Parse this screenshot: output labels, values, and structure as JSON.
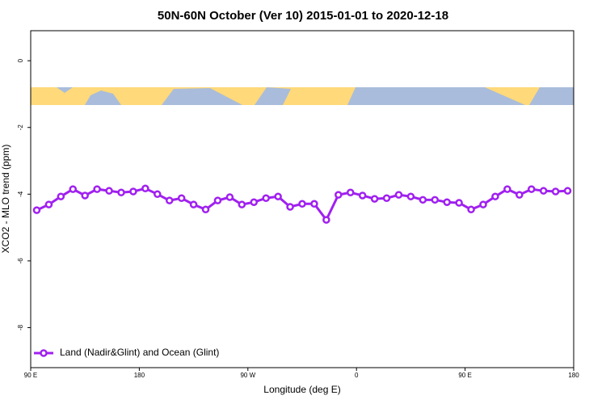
{
  "chart_data": {
    "type": "line",
    "title": "50N-60N October (Ver 10)   2015-01-01 to 2020-12-18",
    "xlabel": "Longitude (deg E)",
    "ylabel": "XCO2 - MLO trend (ppm)",
    "x": [
      95,
      105,
      115,
      125,
      135,
      145,
      155,
      165,
      175,
      185,
      195,
      205,
      215,
      225,
      235,
      245,
      255,
      265,
      275,
      285,
      295,
      305,
      315,
      325,
      335,
      345,
      355,
      365,
      375,
      385,
      395,
      405,
      415,
      425,
      435,
      445,
      455,
      465,
      475,
      485,
      495,
      505,
      515,
      525,
      535
    ],
    "series": [
      {
        "name": "Land (Nadir&Glint) and Ocean (Glint)",
        "color": "#a020f0",
        "values": [
          -4.48,
          -4.31,
          -4.07,
          -3.85,
          -4.04,
          -3.85,
          -3.9,
          -3.95,
          -3.92,
          -3.83,
          -4.0,
          -4.19,
          -4.12,
          -4.31,
          -4.46,
          -4.19,
          -4.09,
          -4.31,
          -4.24,
          -4.12,
          -4.07,
          -4.38,
          -4.29,
          -4.29,
          -4.77,
          -4.02,
          -3.95,
          -4.04,
          -4.14,
          -4.12,
          -4.02,
          -4.07,
          -4.17,
          -4.17,
          -4.24,
          -4.26,
          -4.46,
          -4.31,
          -4.07,
          -3.85,
          -4.02,
          -3.85,
          -3.9,
          -3.92,
          -3.9
        ]
      }
    ],
    "xlim": [
      90,
      540
    ],
    "xticks": [
      {
        "value": 90,
        "label": "90 E"
      },
      180,
      {
        "value": 270,
        "label": "90 W"
      },
      {
        "value": 360,
        "label": "0"
      },
      {
        "value": 450,
        "label": "90 E"
      },
      {
        "value": 540,
        "label": "180"
      }
    ],
    "ylim": [
      -9.2,
      0.9
    ],
    "yticks": [
      0,
      -2,
      -4,
      -6,
      -8
    ],
    "legend": "bottom-left"
  }
}
